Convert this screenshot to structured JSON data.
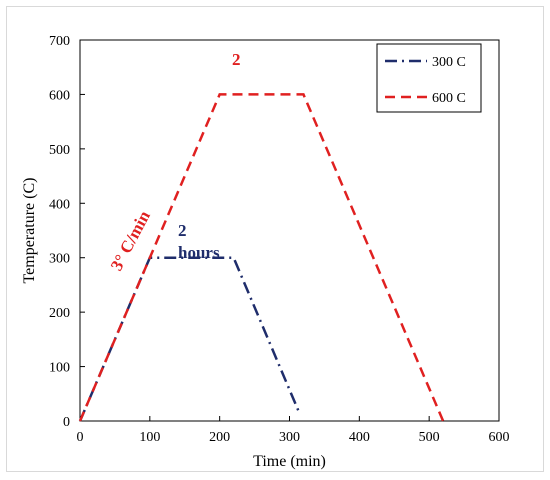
{
  "chart_data": {
    "type": "line",
    "title": "",
    "xlabel": "Time (min)",
    "ylabel": "Temperature (C)",
    "xlim": [
      0,
      600
    ],
    "ylim": [
      0,
      700
    ],
    "x_ticks": [
      0,
      100,
      200,
      300,
      400,
      500,
      600
    ],
    "y_ticks": [
      0,
      100,
      200,
      300,
      400,
      500,
      600,
      700
    ],
    "grid": false,
    "legend_position": "top-right",
    "series": [
      {
        "name": "300 C",
        "color": "#1f2d6b",
        "dash": "dash-dot",
        "x": [
          0,
          100,
          220,
          315
        ],
        "y": [
          0,
          300,
          300,
          12
        ]
      },
      {
        "name": "600 C",
        "color": "#e02020",
        "dash": "dashed",
        "x": [
          0,
          200,
          320,
          520
        ],
        "y": [
          0,
          600,
          600,
          0
        ]
      }
    ],
    "annotations": [
      {
        "text": "3° C/min",
        "color": "#e02020"
      },
      {
        "text": "2",
        "color": "#e02020"
      },
      {
        "text": "2",
        "color": "#1f2d6b"
      },
      {
        "text": "hours",
        "color": "#1f2d6b"
      }
    ]
  }
}
